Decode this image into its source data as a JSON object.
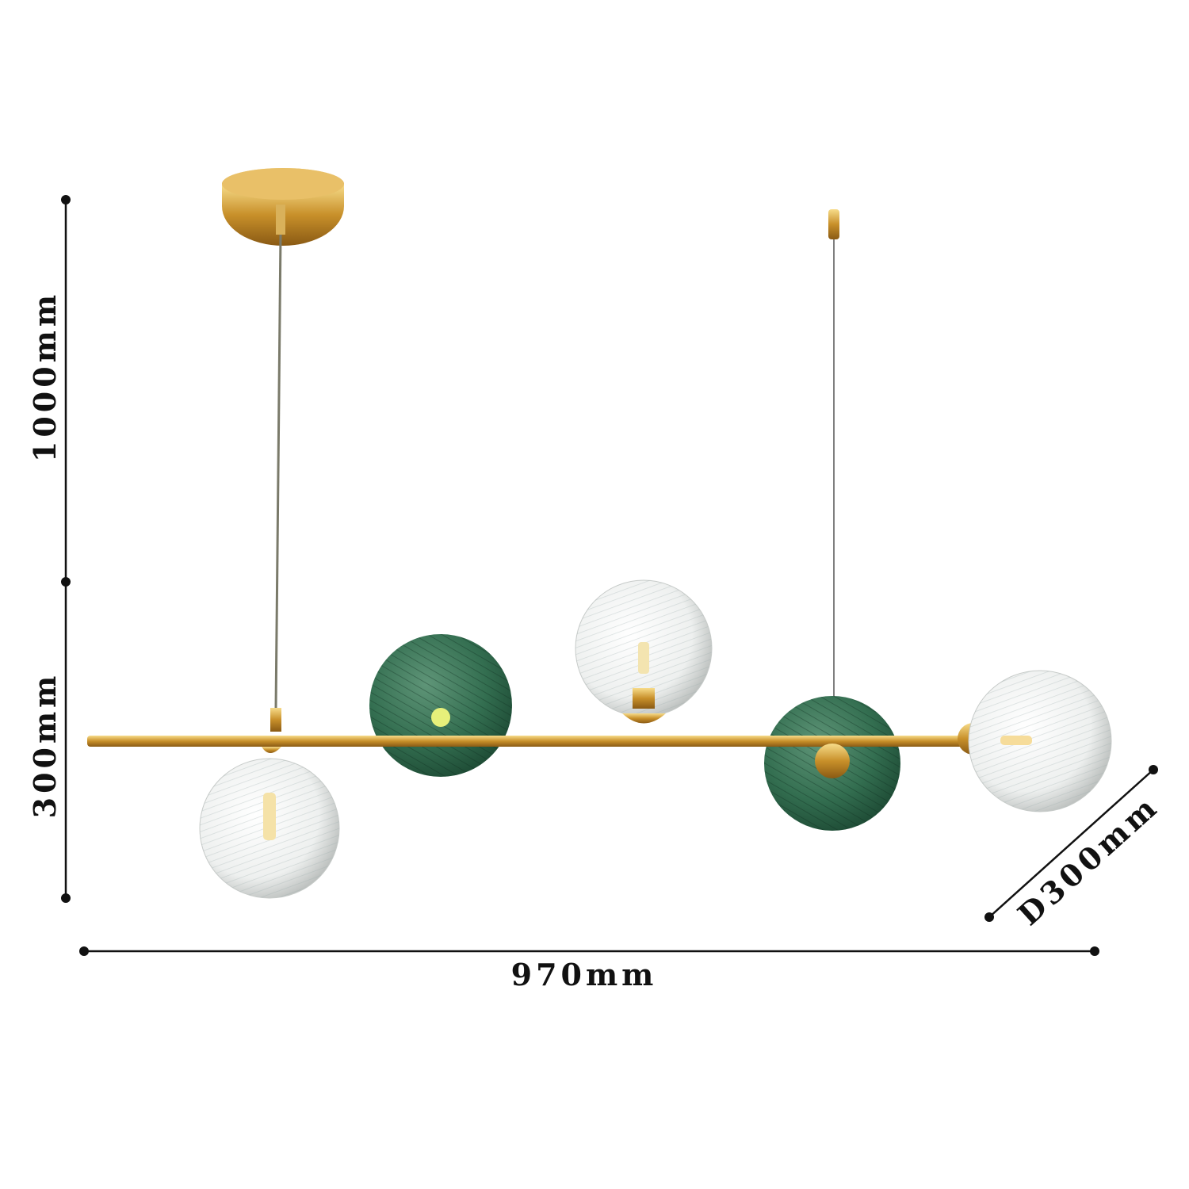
{
  "dimensions": {
    "total_height": "1000mm",
    "body_height": "300mm",
    "length": "970mm",
    "depth": "D300mm"
  },
  "colors": {
    "gold": "#d4a43a",
    "green_glass": "#2f6e4c",
    "clear_glass": "#e8ecec",
    "dimension_line": "#111111"
  }
}
